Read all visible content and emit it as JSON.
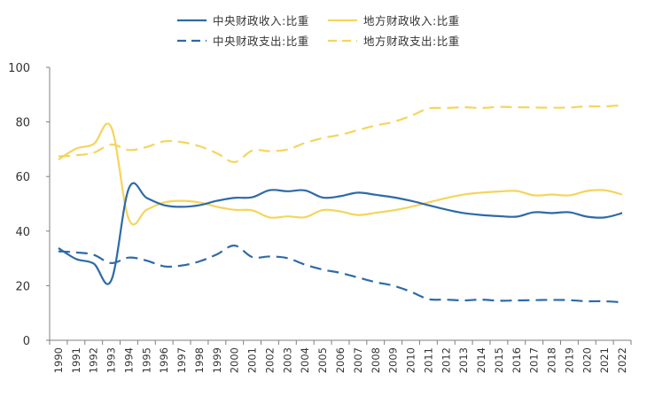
{
  "chart_data": {
    "type": "line",
    "title": "",
    "xlabel": "",
    "ylabel": "",
    "ylim": [
      0,
      100
    ],
    "yticks": [
      0,
      20,
      40,
      60,
      80,
      100
    ],
    "grid": false,
    "legend_position": "top-center",
    "x": [
      "1990",
      "1991",
      "1992",
      "1993",
      "1994",
      "1995",
      "1996",
      "1997",
      "1998",
      "1999",
      "2000",
      "2001",
      "2002",
      "2003",
      "2004",
      "2005",
      "2006",
      "2007",
      "2008",
      "2009",
      "2010",
      "2011",
      "2012",
      "2013",
      "2014",
      "2015",
      "2016",
      "2017",
      "2018",
      "2019",
      "2020",
      "2021",
      "2022"
    ],
    "series": [
      {
        "name": "中央财政收入:比重",
        "color": "#2e6aa8",
        "dash": "solid",
        "values": [
          33.8,
          29.8,
          28.1,
          22.0,
          55.7,
          52.2,
          49.5,
          48.9,
          49.5,
          51.1,
          52.2,
          52.4,
          55.0,
          54.6,
          54.9,
          52.3,
          52.8,
          54.1,
          53.3,
          52.4,
          51.1,
          49.5,
          47.9,
          46.6,
          45.9,
          45.5,
          45.3,
          46.9,
          46.6,
          46.9,
          45.3,
          45.0,
          46.6
        ]
      },
      {
        "name": "地方财政收入:比重",
        "color": "#f4d55c",
        "dash": "solid",
        "values": [
          66.2,
          70.2,
          71.9,
          78.0,
          44.3,
          47.8,
          50.5,
          51.1,
          50.5,
          48.9,
          47.8,
          47.6,
          45.0,
          45.4,
          45.1,
          47.7,
          47.2,
          45.9,
          46.7,
          47.6,
          48.9,
          50.5,
          52.1,
          53.4,
          54.1,
          54.5,
          54.7,
          53.1,
          53.4,
          53.1,
          54.7,
          55.0,
          53.4
        ]
      },
      {
        "name": "中央财政支出:比重",
        "color": "#2e6aa8",
        "dash": "dashed",
        "values": [
          32.6,
          32.2,
          31.3,
          28.3,
          30.3,
          29.2,
          27.1,
          27.4,
          28.9,
          31.5,
          34.7,
          30.5,
          30.7,
          30.1,
          27.7,
          25.9,
          24.7,
          23.0,
          21.3,
          20.0,
          17.8,
          15.1,
          14.9,
          14.6,
          14.9,
          14.5,
          14.6,
          14.7,
          14.8,
          14.7,
          14.3,
          14.3,
          13.9
        ]
      },
      {
        "name": "地方财政支出:比重",
        "color": "#f4d55c",
        "dash": "dashed",
        "values": [
          67.4,
          67.8,
          68.7,
          71.7,
          69.7,
          70.8,
          72.9,
          72.6,
          71.1,
          68.5,
          65.3,
          69.5,
          69.3,
          69.9,
          72.3,
          74.1,
          75.3,
          77.0,
          78.7,
          80.0,
          82.2,
          84.9,
          85.1,
          85.4,
          85.1,
          85.5,
          85.4,
          85.3,
          85.2,
          85.3,
          85.7,
          85.7,
          86.1
        ]
      }
    ]
  }
}
